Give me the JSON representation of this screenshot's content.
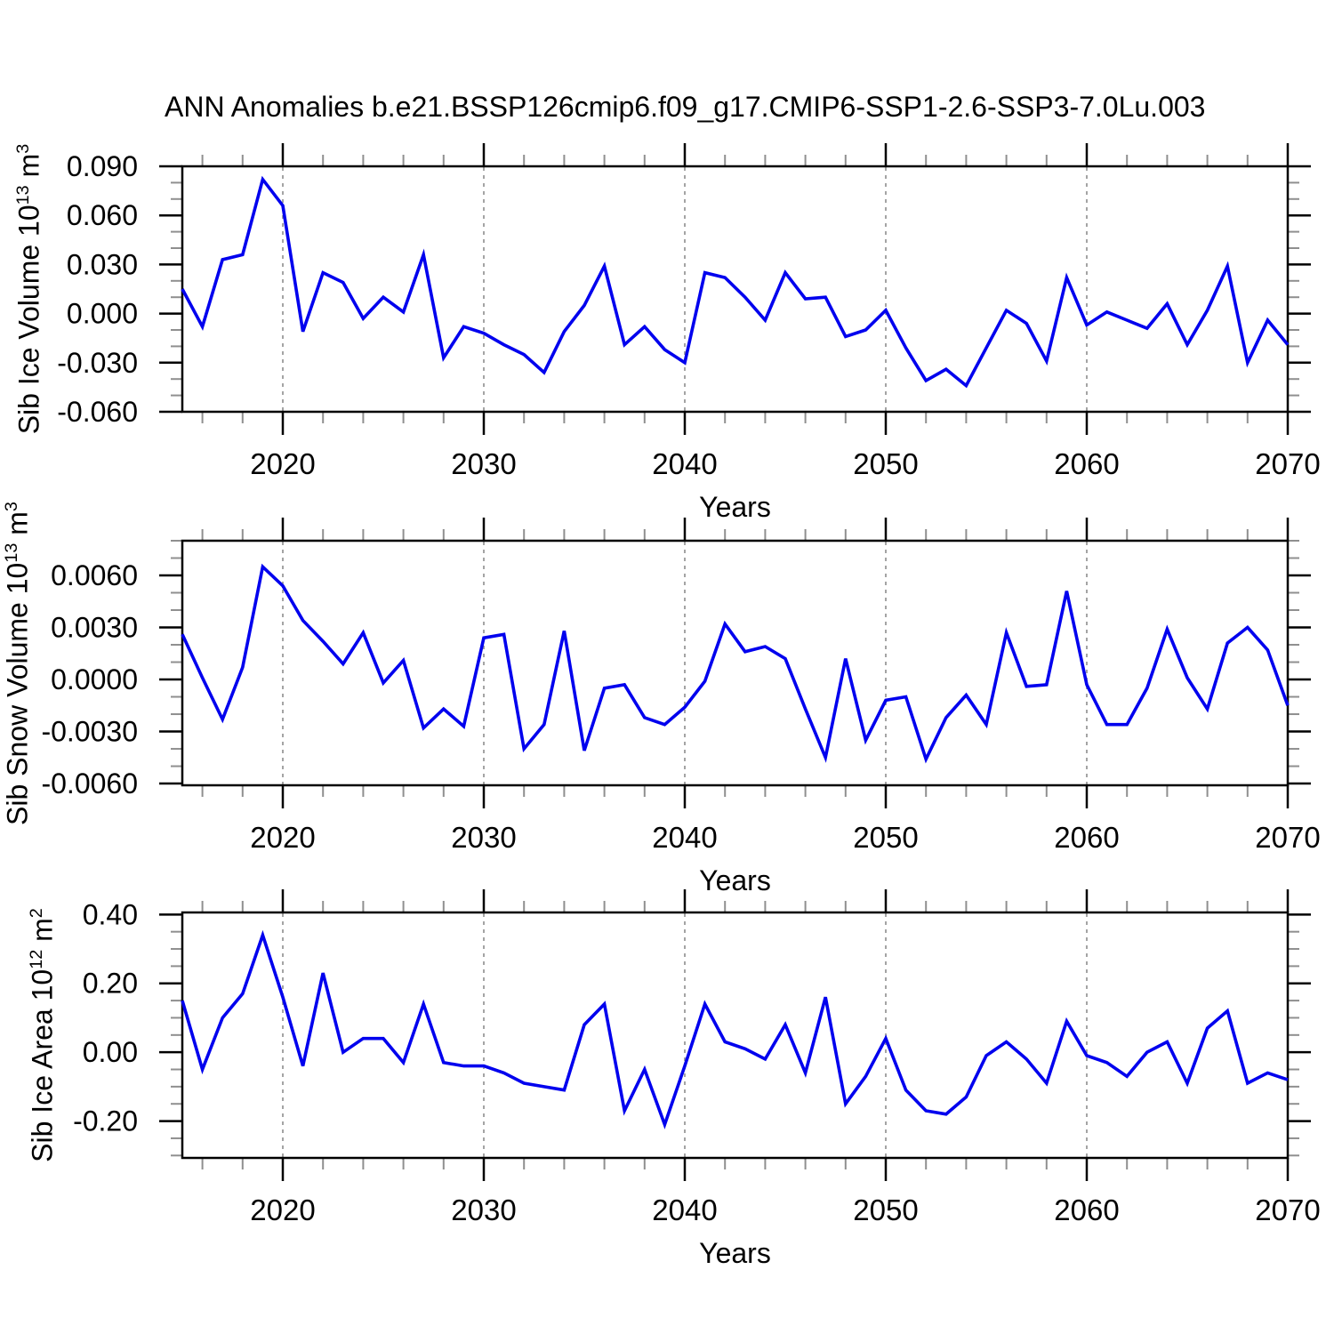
{
  "title": "ANN Anomalies b.e21.BSSP126cmip6.f09_g17.CMIP6-SSP1-2.6-SSP3-7.0Lu.003",
  "colors": {
    "line": "#0000EE",
    "frame": "#000000",
    "major_tick": "#000000",
    "minor_tick": "#8f8f8f",
    "grid": "#9a9a9a"
  },
  "years": [
    2015,
    2016,
    2017,
    2018,
    2019,
    2020,
    2021,
    2022,
    2023,
    2024,
    2025,
    2026,
    2027,
    2028,
    2029,
    2030,
    2031,
    2032,
    2033,
    2034,
    2035,
    2036,
    2037,
    2038,
    2039,
    2040,
    2041,
    2042,
    2043,
    2044,
    2045,
    2046,
    2047,
    2048,
    2049,
    2050,
    2051,
    2052,
    2053,
    2054,
    2055,
    2056,
    2057,
    2058,
    2059,
    2060,
    2061,
    2062,
    2063,
    2064,
    2065,
    2066,
    2067,
    2068,
    2069,
    2070
  ],
  "chart_data": [
    {
      "type": "line",
      "title": "",
      "xlabel": "Years",
      "ylabel": "Sib Ice Volume 10^13 m^3",
      "ylabel_parts": {
        "pre": "Sib Ice Volume 10",
        "sup1": "13",
        "mid": " m",
        "sup2": "3"
      },
      "series_name": "Sib Ice Volume anomaly",
      "values": [
        0.015,
        -0.008,
        0.033,
        0.036,
        0.082,
        0.066,
        -0.011,
        0.025,
        0.019,
        -0.003,
        0.01,
        0.001,
        0.036,
        -0.027,
        -0.008,
        -0.012,
        -0.019,
        -0.025,
        -0.036,
        -0.011,
        0.005,
        0.029,
        -0.019,
        -0.008,
        -0.022,
        -0.03,
        0.025,
        0.022,
        0.01,
        -0.004,
        0.025,
        0.009,
        0.01,
        -0.014,
        -0.01,
        0.002,
        -0.021,
        -0.041,
        -0.034,
        -0.044,
        -0.021,
        0.002,
        -0.006,
        -0.029,
        0.022,
        -0.007,
        0.001,
        -0.004,
        -0.009,
        0.006,
        -0.019,
        0.002,
        0.029,
        -0.03,
        -0.004,
        -0.019
      ],
      "xlim": [
        2015,
        2070
      ],
      "ylim": [
        -0.06,
        0.09
      ],
      "y_major_ticks": [
        0.09,
        0.06,
        0.03,
        0.0,
        -0.03,
        -0.06
      ],
      "y_tick_labels": [
        "0.090",
        "0.060",
        "0.030",
        "0.000",
        "-0.030",
        "-0.060"
      ],
      "y_minor_step": 0.01,
      "x_major_ticks": [
        2020,
        2030,
        2040,
        2050,
        2060,
        2070
      ],
      "x_tick_labels": [
        "2020",
        "2030",
        "2040",
        "2050",
        "2060",
        "2070"
      ],
      "x_minor_step": 2,
      "grid_lines_at": [
        2020,
        2030,
        2040,
        2050,
        2060
      ],
      "grid": "vertical-dashed",
      "legend": "none"
    },
    {
      "type": "line",
      "title": "",
      "xlabel": "Years",
      "ylabel": "Sib Snow Volume 10^13 m^3",
      "ylabel_parts": {
        "pre": "Sib Snow Volume 10",
        "sup1": "13",
        "mid": " m",
        "sup2": "3"
      },
      "series_name": "Sib Snow Volume anomaly",
      "values": [
        0.0026,
        0.0001,
        -0.0023,
        0.0007,
        0.0065,
        0.0054,
        0.0034,
        0.0022,
        0.0009,
        0.0027,
        -0.0002,
        0.0011,
        -0.0028,
        -0.0017,
        -0.0027,
        0.0024,
        0.0026,
        -0.004,
        -0.0026,
        0.0028,
        -0.0041,
        -0.0005,
        -0.0003,
        -0.0022,
        -0.0026,
        -0.0016,
        -0.0001,
        0.0032,
        0.0016,
        0.0019,
        0.0012,
        -0.0017,
        -0.0045,
        0.0012,
        -0.0035,
        -0.0012,
        -0.001,
        -0.0046,
        -0.0022,
        -0.0009,
        -0.0026,
        0.0027,
        -0.0004,
        -0.0003,
        0.0051,
        -0.0003,
        -0.0026,
        -0.0026,
        -0.0005,
        0.0029,
        0.0001,
        -0.0017,
        0.0021,
        0.003,
        0.0017,
        -0.0015
      ],
      "xlim": [
        2015,
        2070
      ],
      "ylim": [
        -0.0061,
        0.008
      ],
      "y_major_ticks": [
        0.006,
        0.003,
        0.0,
        -0.003,
        -0.006
      ],
      "y_tick_labels": [
        "0.0060",
        "0.0030",
        "0.0000",
        "-0.0030",
        "-0.0060"
      ],
      "y_minor_step": 0.001,
      "x_major_ticks": [
        2020,
        2030,
        2040,
        2050,
        2060,
        2070
      ],
      "x_tick_labels": [
        "2020",
        "2030",
        "2040",
        "2050",
        "2060",
        "2070"
      ],
      "x_minor_step": 2,
      "grid_lines_at": [
        2020,
        2030,
        2040,
        2050,
        2060
      ],
      "grid": "vertical-dashed",
      "legend": "none"
    },
    {
      "type": "line",
      "title": "",
      "xlabel": "Years",
      "ylabel": "Sib Ice Area 10^12 m^2",
      "ylabel_parts": {
        "pre": "Sib Ice Area 10",
        "sup1": "12",
        "mid": " m",
        "sup2": "2"
      },
      "series_name": "Sib Ice Area anomaly",
      "values": [
        0.15,
        -0.05,
        0.1,
        0.17,
        0.34,
        0.16,
        -0.04,
        0.23,
        0.0,
        0.04,
        0.04,
        -0.03,
        0.14,
        -0.03,
        -0.04,
        -0.04,
        -0.06,
        -0.09,
        -0.1,
        -0.11,
        0.08,
        0.14,
        -0.17,
        -0.05,
        -0.21,
        -0.04,
        0.14,
        0.03,
        0.01,
        -0.02,
        0.08,
        -0.06,
        0.16,
        -0.15,
        -0.07,
        0.04,
        -0.11,
        -0.17,
        -0.18,
        -0.13,
        -0.01,
        0.03,
        -0.02,
        -0.09,
        0.09,
        -0.01,
        -0.03,
        -0.07,
        0.0,
        0.03,
        -0.09,
        0.07,
        0.12,
        -0.09,
        -0.06,
        -0.08
      ],
      "xlim": [
        2015,
        2070
      ],
      "ylim": [
        -0.307,
        0.406
      ],
      "y_major_ticks": [
        0.4,
        0.2,
        0.0,
        -0.2
      ],
      "y_tick_labels": [
        "0.40",
        "0.20",
        "0.00",
        "-0.20"
      ],
      "y_minor_step": 0.05,
      "x_major_ticks": [
        2020,
        2030,
        2040,
        2050,
        2060,
        2070
      ],
      "x_tick_labels": [
        "2020",
        "2030",
        "2040",
        "2050",
        "2060",
        "2070"
      ],
      "x_minor_step": 2,
      "grid_lines_at": [
        2020,
        2030,
        2040,
        2050,
        2060
      ],
      "grid": "vertical-dashed",
      "legend": "none"
    }
  ]
}
